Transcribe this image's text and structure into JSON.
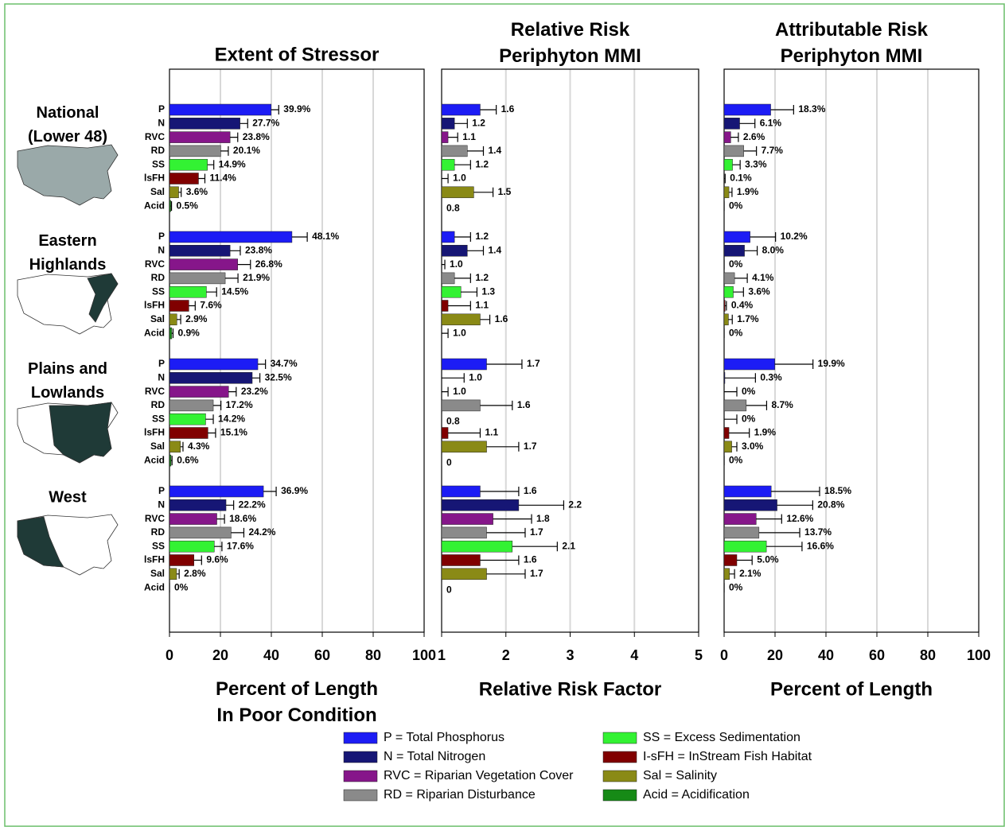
{
  "regions": [
    "National\n(Lower 48)",
    "Eastern\nHighlands",
    "Plains and\nLowlands",
    "West"
  ],
  "categories": [
    "P",
    "N",
    "RVC",
    "RD",
    "SS",
    "lsFH",
    "Sal",
    "Acid"
  ],
  "colors": [
    "#1c1cf5",
    "#161675",
    "#86168a",
    "#8a8a8a",
    "#33f233",
    "#800000",
    "#8a8a16",
    "#168a16"
  ],
  "legend": [
    "P = Total Phosphorus",
    "N = Total Nitrogen",
    "RVC = Riparian Vegetation Cover",
    "RD = Riparian Disturbance",
    "SS = Excess Sedimentation",
    "I-sFH = InStream Fish Habitat",
    "Sal = Salinity",
    "Acid = Acidification"
  ],
  "chart_data": [
    {
      "type": "bar",
      "title": "Extent of Stressor",
      "xlabel": "Percent of Length\nIn Poor Condition",
      "xlim": [
        0,
        100
      ],
      "xticks": [
        0,
        20,
        40,
        60,
        80,
        100
      ],
      "grid": true,
      "groups": [
        {
          "values": [
            39.9,
            27.7,
            23.8,
            20.1,
            14.9,
            11.4,
            3.6,
            0.5
          ],
          "errors": [
            3,
            3,
            3,
            3,
            2.5,
            2.5,
            1,
            0.3
          ],
          "value_labels": [
            "39.9%",
            "27.7%",
            "23.8%",
            "20.1%",
            "14.9%",
            "11.4%",
            "3.6%",
            "0.5%"
          ]
        },
        {
          "values": [
            48.1,
            23.8,
            26.8,
            21.9,
            14.5,
            7.6,
            2.9,
            0.9
          ],
          "errors": [
            6,
            4,
            5,
            5,
            4,
            2.5,
            1.5,
            0.5
          ],
          "value_labels": [
            "48.1%",
            "23.8%",
            "26.8%",
            "21.9%",
            "14.5%",
            "7.6%",
            "2.9%",
            "0.9%"
          ]
        },
        {
          "values": [
            34.7,
            32.5,
            23.2,
            17.2,
            14.2,
            15.1,
            4.3,
            0.6
          ],
          "errors": [
            3,
            3,
            3,
            3,
            3,
            3,
            1,
            0.4
          ],
          "value_labels": [
            "34.7%",
            "32.5%",
            "23.2%",
            "17.2%",
            "14.2%",
            "15.1%",
            "4.3%",
            "0.6%"
          ]
        },
        {
          "values": [
            36.9,
            22.2,
            18.6,
            24.2,
            17.6,
            9.6,
            2.8,
            0
          ],
          "errors": [
            5,
            3,
            3,
            5,
            3,
            3,
            1,
            0
          ],
          "value_labels": [
            "36.9%",
            "22.2%",
            "18.6%",
            "24.2%",
            "17.6%",
            "9.6%",
            "2.8%",
            "0%"
          ]
        }
      ]
    },
    {
      "type": "bar",
      "title": "Relative Risk\nPeriphyton MMI",
      "xlabel": "Relative Risk Factor",
      "xlim": [
        1,
        5
      ],
      "xticks": [
        1,
        2,
        3,
        4,
        5
      ],
      "grid": true,
      "groups": [
        {
          "values": [
            1.6,
            1.2,
            1.1,
            1.4,
            1.2,
            1.0,
            1.5,
            0.8
          ],
          "errors": [
            0.25,
            0.2,
            0.15,
            0.25,
            0.25,
            0.1,
            0.3,
            0.1
          ],
          "value_labels": [
            "1.6",
            "1.2",
            "1.1",
            "1.4",
            "1.2",
            "1.0",
            "1.5",
            "0.8"
          ]
        },
        {
          "values": [
            1.2,
            1.4,
            1.0,
            1.2,
            1.3,
            1.1,
            1.6,
            1.0
          ],
          "errors": [
            0.25,
            0.25,
            0.05,
            0.25,
            0.25,
            0.35,
            0.15,
            0.1
          ],
          "value_labels": [
            "1.2",
            "1.4",
            "1.0",
            "1.2",
            "1.3",
            "1.1",
            "1.6",
            "1.0"
          ]
        },
        {
          "values": [
            1.7,
            1.0,
            1.0,
            1.6,
            0.8,
            1.1,
            1.7,
            0
          ],
          "errors": [
            0.55,
            0.35,
            0.1,
            0.5,
            0.1,
            0.5,
            0.5,
            0
          ],
          "value_labels": [
            "1.7",
            "1.0",
            "1.0",
            "1.6",
            "0.8",
            "1.1",
            "1.7",
            "0"
          ]
        },
        {
          "values": [
            1.6,
            2.2,
            1.8,
            1.7,
            2.1,
            1.6,
            1.7,
            0
          ],
          "errors": [
            0.6,
            0.7,
            0.6,
            0.6,
            0.7,
            0.6,
            0.6,
            0
          ],
          "value_labels": [
            "1.6",
            "2.2",
            "1.8",
            "1.7",
            "2.1",
            "1.6",
            "1.7",
            "0"
          ]
        }
      ]
    },
    {
      "type": "bar",
      "title": "Attributable Risk\nPeriphyton MMI",
      "xlabel": "Percent of Length",
      "xlim": [
        0,
        100
      ],
      "xticks": [
        0,
        20,
        40,
        60,
        80,
        100
      ],
      "grid": true,
      "groups": [
        {
          "values": [
            18.3,
            6.1,
            2.6,
            7.7,
            3.3,
            0.1,
            1.9,
            0
          ],
          "errors": [
            9,
            6,
            3,
            5,
            3,
            0.3,
            1.2,
            0
          ],
          "value_labels": [
            "18.3%",
            "6.1%",
            "2.6%",
            "7.7%",
            "3.3%",
            "0.1%",
            "1.9%",
            "0%"
          ]
        },
        {
          "values": [
            10.2,
            8.0,
            0,
            4.1,
            3.6,
            0.4,
            1.7,
            0
          ],
          "errors": [
            10,
            5,
            0,
            5,
            4,
            0.5,
            1.5,
            0
          ],
          "value_labels": [
            "10.2%",
            "8.0%",
            "0%",
            "4.1%",
            "3.6%",
            "0.4%",
            "1.7%",
            "0%"
          ]
        },
        {
          "values": [
            19.9,
            0.3,
            0,
            8.7,
            0,
            1.9,
            3.0,
            0
          ],
          "errors": [
            15,
            12,
            5,
            8,
            5,
            8,
            2,
            0
          ],
          "value_labels": [
            "19.9%",
            "0.3%",
            "0%",
            "8.7%",
            "0%",
            "1.9%",
            "3.0%",
            "0%"
          ]
        },
        {
          "values": [
            18.5,
            20.8,
            12.6,
            13.7,
            16.6,
            5.0,
            2.1,
            0
          ],
          "errors": [
            19,
            14,
            10,
            16,
            14,
            6,
            2,
            0
          ],
          "value_labels": [
            "18.5%",
            "20.8%",
            "12.6%",
            "13.7%",
            "16.6%",
            "5.0%",
            "2.1%",
            "0%"
          ]
        }
      ]
    }
  ]
}
